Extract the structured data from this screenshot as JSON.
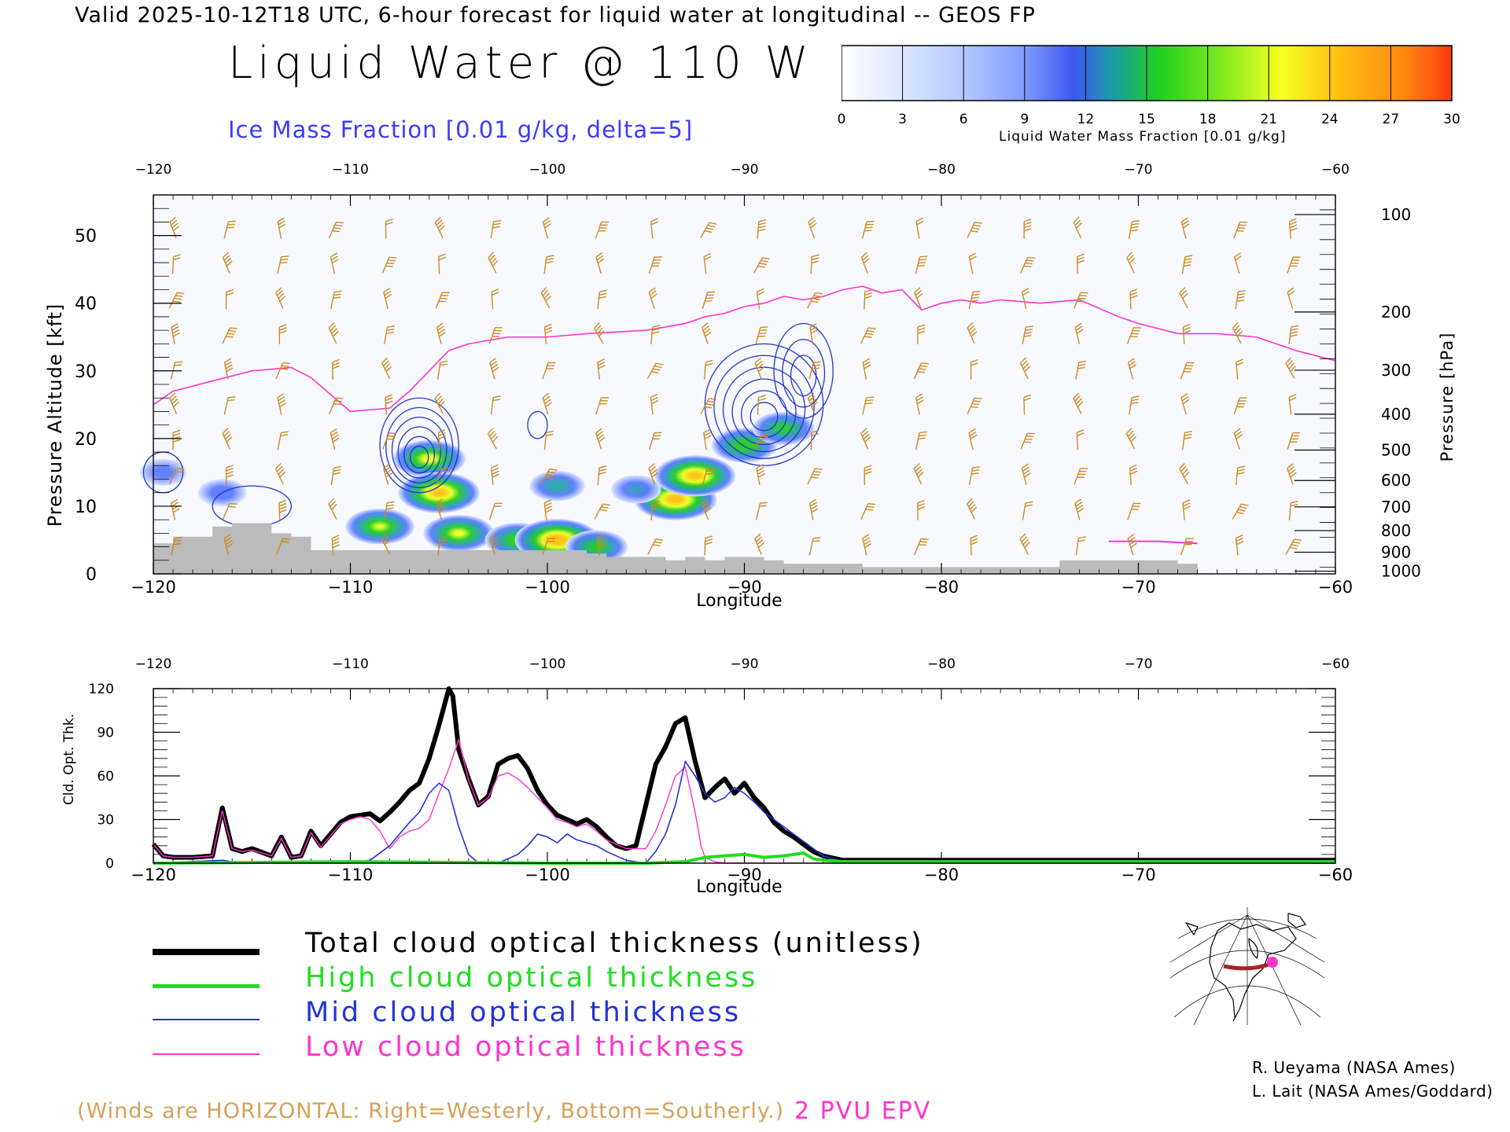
{
  "header": {
    "valid_line": "Valid 2025-10-12T18 UTC, 6-hour forecast for liquid water at longitudinal -- GEOS FP",
    "main_title": "Liquid Water @ 110 W",
    "ice_title": "Ice Mass Fraction [0.01 g/kg, delta=5]"
  },
  "colorbar": {
    "label": "Liquid Water Mass Fraction [0.01 g/kg]",
    "ticks": [
      "0",
      "3",
      "6",
      "9",
      "12",
      "15",
      "18",
      "21",
      "24",
      "27",
      "30"
    ],
    "colors": [
      "#f4f6ff",
      "#c8d8ff",
      "#9db8ff",
      "#6f90ff",
      "#3a55ee",
      "#1a9f9f",
      "#22cc22",
      "#8ee020",
      "#f0ff20",
      "#ffbe10",
      "#ff7a10"
    ]
  },
  "colors": {
    "wind_barbs": "#cc8a22",
    "pv_line": "#ff33cc",
    "ice_contour": "#2233cc",
    "terrain": "#bbbbbb",
    "total": "#000000",
    "high": "#22dd22",
    "mid": "#2233dd",
    "low": "#ff33cc"
  },
  "chart_data": [
    {
      "type": "heatmap",
      "title": "Liquid Water @ 110 W",
      "xlabel": "Longitude",
      "ylabel": "Pressure Altitude [kft]",
      "ylabel_right": "Pressure [hPa]",
      "xlim": [
        -120,
        -60
      ],
      "ylim": [
        0,
        56
      ],
      "x_ticks": [
        "−120",
        "−110",
        "−100",
        "−90",
        "−80",
        "−70",
        "−60"
      ],
      "x_tick_values": [
        -120,
        -110,
        -100,
        -90,
        -80,
        -70,
        -60
      ],
      "y_ticks": [
        "0",
        "10",
        "20",
        "30",
        "40",
        "50"
      ],
      "y_tick_values": [
        0,
        10,
        20,
        30,
        40,
        50
      ],
      "pressure_ticks": [
        {
          "label": "100",
          "kft": 53.1
        },
        {
          "label": "200",
          "kft": 38.7
        },
        {
          "label": "300",
          "kft": 30.1
        },
        {
          "label": "400",
          "kft": 23.6
        },
        {
          "label": "500",
          "kft": 18.3
        },
        {
          "label": "600",
          "kft": 13.8
        },
        {
          "label": "700",
          "kft": 9.9
        },
        {
          "label": "800",
          "kft": 6.4
        },
        {
          "label": "900",
          "kft": 3.2
        },
        {
          "label": "1000",
          "kft": 0.4
        }
      ],
      "pv_2pvu_line": {
        "lon": [
          -120,
          -119,
          -117,
          -115,
          -113,
          -112,
          -110,
          -108,
          -107,
          -106,
          -105,
          -104,
          -102,
          -100,
          -98,
          -95,
          -93,
          -92,
          -91,
          -90,
          -89,
          -88,
          -87,
          -86,
          -85,
          -84,
          -83,
          -82,
          -81,
          -80,
          -79,
          -78,
          -77,
          -75,
          -73,
          -71,
          -70,
          -68,
          -66,
          -64,
          -62,
          -60
        ],
        "kft": [
          25,
          27,
          28.5,
          30,
          30.5,
          29,
          24,
          24.5,
          27,
          30,
          33,
          34,
          35,
          35,
          35.5,
          36,
          37,
          38,
          38.5,
          39.5,
          40,
          41,
          40.5,
          41,
          42,
          42.5,
          41.5,
          42,
          39,
          40,
          40.5,
          40,
          40.5,
          40,
          40.5,
          38,
          37,
          35.5,
          35.5,
          35,
          33,
          31.5
        ]
      },
      "liquid_blobs": [
        {
          "lon": -116.5,
          "kft": 12,
          "value": 8
        },
        {
          "lon": -108.5,
          "kft": 7,
          "value": 20
        },
        {
          "lon": -106,
          "kft": 17,
          "value": 22
        },
        {
          "lon": -105.5,
          "kft": 12,
          "value": 27
        },
        {
          "lon": -104.5,
          "kft": 6,
          "value": 21
        },
        {
          "lon": -101.5,
          "kft": 5,
          "value": 18
        },
        {
          "lon": -99.5,
          "kft": 5,
          "value": 29
        },
        {
          "lon": -97.5,
          "kft": 4,
          "value": 16
        },
        {
          "lon": -99.5,
          "kft": 13,
          "value": 12
        },
        {
          "lon": -93.5,
          "kft": 11,
          "value": 28
        },
        {
          "lon": -92.5,
          "kft": 14.5,
          "value": 27
        },
        {
          "lon": -90,
          "kft": 19,
          "value": 18
        },
        {
          "lon": -88,
          "kft": 21.5,
          "value": 16
        },
        {
          "lon": -95.5,
          "kft": 12.5,
          "value": 9
        },
        {
          "lon": -119.5,
          "kft": 15,
          "value": 7
        }
      ],
      "ice_clouds": [
        {
          "lon": -106.5,
          "kft": 19,
          "width_deg": 4,
          "height_kft": 14,
          "rings": 6
        },
        {
          "lon": -89,
          "kft": 25,
          "width_deg": 6,
          "height_kft": 18,
          "rings": 6
        },
        {
          "lon": -87,
          "kft": 30,
          "width_deg": 3,
          "height_kft": 14,
          "rings": 3
        },
        {
          "lon": -115,
          "kft": 10,
          "width_deg": 4,
          "height_kft": 6,
          "rings": 1
        },
        {
          "lon": -119.5,
          "kft": 15,
          "width_deg": 2,
          "height_kft": 6,
          "rings": 1
        },
        {
          "lon": -100.5,
          "kft": 22,
          "width_deg": 1,
          "height_kft": 4,
          "rings": 1
        }
      ],
      "terrain": {
        "lon": [
          -120,
          -119,
          -118,
          -117,
          -116,
          -115,
          -114,
          -113,
          -112,
          -110,
          -108,
          -106,
          -104,
          -102,
          -100,
          -98,
          -97,
          -95,
          -94,
          -93,
          -92,
          -91,
          -90,
          -89,
          -88,
          -86,
          -84,
          -82,
          -80,
          -78,
          -76,
          -74,
          -72,
          -70,
          -68,
          -67
        ],
        "kft": [
          4.5,
          5.5,
          5.5,
          7,
          7.5,
          7.5,
          6,
          5.5,
          3.5,
          3.5,
          3.5,
          3.5,
          3.5,
          3.5,
          3.5,
          3,
          2.5,
          2.5,
          2,
          2.5,
          2,
          2.5,
          2.5,
          2,
          1.5,
          1.5,
          1,
          1,
          1,
          1,
          1,
          2,
          2,
          2,
          1.5,
          1.5
        ]
      }
    },
    {
      "type": "line",
      "xlabel": "Longitude",
      "ylabel": "Cld. Opt. Thk.",
      "xlim": [
        -120,
        -60
      ],
      "ylim": [
        0,
        120
      ],
      "x_ticks": [
        "−120",
        "−110",
        "−100",
        "−90",
        "−80",
        "−70",
        "−60"
      ],
      "x_tick_values": [
        -120,
        -110,
        -100,
        -90,
        -80,
        -70,
        -60
      ],
      "y_ticks": [
        "0",
        "30",
        "60",
        "90",
        "120"
      ],
      "y_tick_values": [
        0,
        30,
        60,
        90,
        120
      ],
      "series": [
        {
          "name": "Total cloud optical thickness (unitless)",
          "key": "total",
          "x": [
            -120,
            -119.5,
            -119,
            -118.5,
            -118,
            -117,
            -116.5,
            -116,
            -115.5,
            -115,
            -114,
            -113.5,
            -113,
            -112.5,
            -112,
            -111.5,
            -111,
            -110.5,
            -110,
            -109.5,
            -109,
            -108.5,
            -108,
            -107.5,
            -107,
            -106.5,
            -106,
            -105.5,
            -105,
            -104.8,
            -104.5,
            -104,
            -103.5,
            -103,
            -102.5,
            -102,
            -101.5,
            -101,
            -100.5,
            -100,
            -99.5,
            -99,
            -98.5,
            -98,
            -97.5,
            -97,
            -96.5,
            -96,
            -95.5,
            -95,
            -94.5,
            -94,
            -93.5,
            -93,
            -92.5,
            -92,
            -91.5,
            -91,
            -90.5,
            -90,
            -89.5,
            -89,
            -88.5,
            -88,
            -87.5,
            -87,
            -86.5,
            -86,
            -85,
            -80,
            -75,
            -70,
            -65,
            -60
          ],
          "y": [
            13,
            5,
            4,
            4,
            4,
            5,
            38,
            10,
            8,
            10,
            5,
            18,
            4,
            5,
            22,
            12,
            20,
            28,
            32,
            33,
            34,
            29,
            35,
            42,
            50,
            55,
            72,
            95,
            120,
            115,
            78,
            58,
            40,
            46,
            68,
            72,
            74,
            65,
            50,
            40,
            33,
            30,
            27,
            30,
            25,
            18,
            12,
            10,
            12,
            40,
            68,
            80,
            96,
            100,
            70,
            45,
            52,
            58,
            48,
            55,
            45,
            38,
            28,
            22,
            18,
            13,
            8,
            5,
            2,
            2,
            2,
            2,
            2,
            2
          ]
        },
        {
          "name": "High cloud optical thickness",
          "key": "high",
          "x": [
            -120,
            -110,
            -100,
            -95,
            -93,
            -92,
            -91,
            -90,
            -89.5,
            -89,
            -88,
            -87,
            -86.5,
            -86,
            -85,
            -80,
            -70,
            -60
          ],
          "y": [
            0,
            1,
            0,
            0,
            1,
            4,
            5,
            6,
            5,
            4,
            5,
            7,
            3,
            2,
            1,
            1,
            1,
            1
          ]
        },
        {
          "name": "Mid cloud optical thickness",
          "key": "mid",
          "x": [
            -120,
            -116.5,
            -116,
            -115,
            -113,
            -110,
            -109,
            -108,
            -107.5,
            -107,
            -106.5,
            -106,
            -105.5,
            -105,
            -104.5,
            -104,
            -103.5,
            -103,
            -102.5,
            -102,
            -101.5,
            -101,
            -100.5,
            -100,
            -99.5,
            -99,
            -98.5,
            -98,
            -97.5,
            -97,
            -96,
            -95,
            -94.5,
            -94,
            -93.5,
            -93,
            -92.5,
            -92,
            -91.5,
            -91,
            -90.5,
            -90,
            -89.5,
            -89,
            -88,
            -87,
            -86,
            -85,
            -80,
            -70,
            -60
          ],
          "y": [
            0,
            2,
            1,
            0,
            0,
            0,
            2,
            12,
            20,
            28,
            35,
            48,
            55,
            50,
            25,
            6,
            0,
            0,
            0,
            3,
            6,
            12,
            20,
            18,
            14,
            20,
            16,
            14,
            12,
            8,
            2,
            0,
            8,
            20,
            40,
            70,
            60,
            48,
            42,
            45,
            52,
            48,
            42,
            35,
            25,
            15,
            5,
            1,
            0,
            0,
            0
          ]
        },
        {
          "name": "Low cloud optical thickness",
          "key": "low",
          "x": [
            -120,
            -119.5,
            -119,
            -118,
            -117,
            -116.5,
            -116,
            -115.5,
            -115,
            -114,
            -113.5,
            -113,
            -112.5,
            -112,
            -111.5,
            -111,
            -110.5,
            -110,
            -109.5,
            -109,
            -108.5,
            -108,
            -107.5,
            -107,
            -106.5,
            -106,
            -105.5,
            -105,
            -104.5,
            -104,
            -103.5,
            -103,
            -102.5,
            -102,
            -101.5,
            -101,
            -100.5,
            -100,
            -99.5,
            -99,
            -98.5,
            -98,
            -97.5,
            -97,
            -96,
            -95,
            -94.5,
            -94,
            -93.5,
            -93,
            -92.5,
            -92.2,
            -92,
            -91.5,
            -91,
            -90,
            -88,
            -86,
            -80,
            -70,
            -60
          ],
          "y": [
            13,
            5,
            4,
            4,
            5,
            36,
            10,
            8,
            9,
            5,
            17,
            4,
            5,
            21,
            11,
            19,
            27,
            30,
            32,
            30,
            22,
            10,
            18,
            22,
            24,
            30,
            48,
            65,
            85,
            57,
            40,
            45,
            60,
            62,
            58,
            52,
            45,
            38,
            30,
            28,
            25,
            27,
            22,
            16,
            10,
            10,
            22,
            40,
            60,
            66,
            35,
            12,
            4,
            1,
            0,
            0,
            0,
            0,
            0,
            0,
            0
          ]
        }
      ]
    }
  ],
  "legend": {
    "total": "Total cloud optical thickness (unitless)",
    "high": "High cloud optical thickness",
    "mid": "Mid cloud optical thickness",
    "low": "Low cloud optical thickness"
  },
  "notes": {
    "winds": "(Winds are HORIZONTAL: Right=Westerly, Bottom=Southerly.)",
    "pvu": "2 PVU EPV"
  },
  "credits": {
    "line1": "R. Ueyama (NASA Ames)",
    "line2": "L. Lait (NASA Ames/Goddard)"
  },
  "inset_map": {
    "marker_color": "#ff33cc",
    "track_color": "#aa2222"
  }
}
